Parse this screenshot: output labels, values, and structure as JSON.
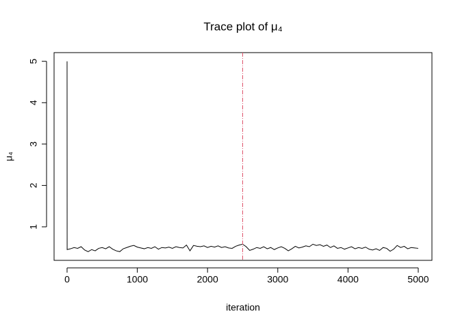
{
  "chart_data": {
    "type": "line",
    "title": "Trace plot of μ₄",
    "x_label": "iteration",
    "y_label": "μ₄",
    "x": [
      0,
      1,
      50,
      100,
      150,
      200,
      250,
      300,
      350,
      400,
      450,
      500,
      550,
      600,
      650,
      700,
      750,
      800,
      850,
      900,
      950,
      1000,
      1050,
      1100,
      1150,
      1200,
      1250,
      1300,
      1350,
      1400,
      1450,
      1500,
      1550,
      1600,
      1650,
      1700,
      1750,
      1800,
      1850,
      1900,
      1950,
      2000,
      2050,
      2100,
      2150,
      2200,
      2250,
      2300,
      2350,
      2400,
      2450,
      2500,
      2550,
      2600,
      2650,
      2700,
      2750,
      2800,
      2850,
      2900,
      2950,
      3000,
      3050,
      3100,
      3150,
      3200,
      3250,
      3300,
      3350,
      3400,
      3450,
      3500,
      3550,
      3600,
      3650,
      3700,
      3750,
      3800,
      3850,
      3900,
      3950,
      4000,
      4050,
      4100,
      4150,
      4200,
      4250,
      4300,
      4350,
      4400,
      4450,
      4500,
      4550,
      4600,
      4650,
      4700,
      4750,
      4800,
      4850,
      4900,
      4950,
      5000
    ],
    "values": [
      5.0,
      0.45,
      0.47,
      0.5,
      0.48,
      0.52,
      0.44,
      0.4,
      0.45,
      0.42,
      0.48,
      0.5,
      0.47,
      0.52,
      0.46,
      0.42,
      0.4,
      0.47,
      0.5,
      0.53,
      0.55,
      0.51,
      0.49,
      0.47,
      0.5,
      0.48,
      0.52,
      0.46,
      0.5,
      0.49,
      0.51,
      0.48,
      0.52,
      0.5,
      0.49,
      0.56,
      0.42,
      0.55,
      0.53,
      0.52,
      0.54,
      0.5,
      0.53,
      0.51,
      0.54,
      0.5,
      0.52,
      0.49,
      0.48,
      0.53,
      0.56,
      0.58,
      0.52,
      0.43,
      0.46,
      0.5,
      0.48,
      0.52,
      0.47,
      0.5,
      0.45,
      0.49,
      0.52,
      0.48,
      0.42,
      0.47,
      0.53,
      0.49,
      0.51,
      0.54,
      0.52,
      0.58,
      0.55,
      0.57,
      0.53,
      0.56,
      0.5,
      0.54,
      0.48,
      0.5,
      0.46,
      0.49,
      0.52,
      0.47,
      0.5,
      0.48,
      0.51,
      0.46,
      0.44,
      0.47,
      0.43,
      0.5,
      0.48,
      0.41,
      0.46,
      0.55,
      0.5,
      0.53,
      0.47,
      0.5,
      0.49,
      0.48
    ],
    "color": "#000000",
    "vline": {
      "x": 2500,
      "color": "#df536b"
    },
    "xlim": [
      -185,
      5195
    ],
    "ylim": [
      0.19,
      5.21
    ],
    "xticks": [
      0,
      1000,
      2000,
      3000,
      4000,
      5000
    ],
    "yticks": [
      1,
      2,
      3,
      4,
      5
    ]
  }
}
